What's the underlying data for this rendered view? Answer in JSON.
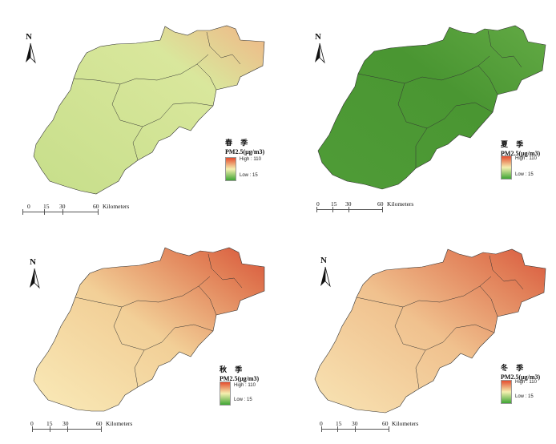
{
  "north_label": "N",
  "scale": {
    "ticks": [
      "0",
      "15",
      "30",
      "60"
    ],
    "units": "Kilometers"
  },
  "legend_common": {
    "unit_label": "PM2.5(μg/m3)",
    "high_label": "High : 110",
    "low_label": "Low : 15"
  },
  "panels": [
    {
      "season": "春 季",
      "high_color": "#e44d2f",
      "low_color": "#3fa534",
      "fill_color": "#c6de8a",
      "hot_color": "#f1b586"
    },
    {
      "season": "夏 季",
      "high_color": "#e44d2f",
      "low_color": "#3fa534",
      "fill_color": "#4f9c37",
      "hot_color": "#63aa45"
    },
    {
      "season": "秋 季",
      "high_color": "#e44d2f",
      "low_color": "#3fa534",
      "fill_color": "#f7e3ae",
      "hot_color": "#d8553b"
    },
    {
      "season": "冬 季",
      "high_color": "#e44d2f",
      "low_color": "#3fa534",
      "fill_color": "#f6d7a4",
      "hot_color": "#d9573d"
    }
  ]
}
